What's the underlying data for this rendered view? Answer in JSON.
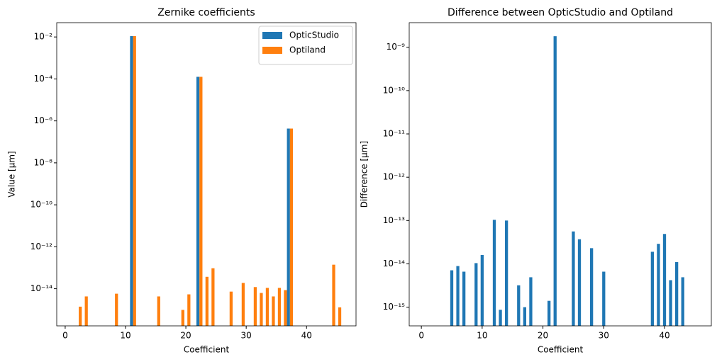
{
  "chart_data": [
    {
      "type": "bar",
      "title": "Zernike coefficients",
      "x_label": "Coefficient",
      "y_label": "Value [µm]",
      "yscale": "log",
      "legend": "upper right",
      "xlim": [
        -1.4,
        48.2
      ],
      "xticks": [
        0,
        10,
        20,
        30,
        40
      ],
      "ylim": [
        1.7e-16,
        0.048
      ],
      "yticks": [
        {
          "value": 0.01,
          "label": "10⁻²"
        },
        {
          "value": 0.0001,
          "label": "10⁻⁴"
        },
        {
          "value": 1e-06,
          "label": "10⁻⁶"
        },
        {
          "value": 1e-08,
          "label": "10⁻⁸"
        },
        {
          "value": 1e-10,
          "label": "10⁻¹⁰"
        },
        {
          "value": 1e-12,
          "label": "10⁻¹²"
        },
        {
          "value": 1e-14,
          "label": "10⁻¹⁴"
        }
      ],
      "x": [
        2,
        3,
        8,
        11,
        15,
        19,
        20,
        22,
        23,
        24,
        27,
        29,
        31,
        32,
        33,
        34,
        35,
        36,
        37,
        44,
        45
      ],
      "series": [
        {
          "name": "OpticStudio",
          "color": "#1f77b4",
          "values": [
            null,
            null,
            null,
            0.011,
            null,
            null,
            null,
            0.000126,
            null,
            null,
            null,
            null,
            null,
            null,
            null,
            null,
            null,
            null,
            4.3e-07,
            null,
            null
          ]
        },
        {
          "name": "Optiland",
          "color": "#ff7f0e",
          "values": [
            1.4e-15,
            4.3e-15,
            5.8e-15,
            0.011,
            4.3e-15,
            9.8e-16,
            5.4e-15,
            0.000126,
            3.7e-14,
            9.5e-14,
            7.3e-15,
            1.9e-14,
            1.2e-14,
            6.3e-15,
            1.1e-14,
            4.3e-15,
            1.1e-14,
            8.6e-15,
            4.3e-07,
            1.4e-13,
            1.3e-15
          ]
        }
      ]
    },
    {
      "type": "bar",
      "title": "Difference between OpticStudio and Optiland",
      "x_label": "Coefficient",
      "y_label": "Difference [µm]",
      "yscale": "log",
      "xlim": [
        -2.0,
        47.7
      ],
      "xticks": [
        0,
        10,
        20,
        30,
        40
      ],
      "ylim": [
        3.7e-16,
        3.7e-09
      ],
      "yticks": [
        {
          "value": 1e-09,
          "label": "10⁻⁹"
        },
        {
          "value": 1e-10,
          "label": "10⁻¹⁰"
        },
        {
          "value": 1e-11,
          "label": "10⁻¹¹"
        },
        {
          "value": 1e-12,
          "label": "10⁻¹²"
        },
        {
          "value": 1e-13,
          "label": "10⁻¹³"
        },
        {
          "value": 1e-14,
          "label": "10⁻¹⁴"
        },
        {
          "value": 1e-15,
          "label": "10⁻¹⁵"
        }
      ],
      "x": [
        5,
        6,
        7,
        9,
        10,
        12,
        13,
        14,
        16,
        17,
        18,
        21,
        22,
        25,
        26,
        28,
        30,
        38,
        39,
        40,
        41,
        42,
        43
      ],
      "color": "#1f77b4",
      "values": [
        7.1e-15,
        8.9e-15,
        6.6e-15,
        1.04e-14,
        1.6e-14,
        1.04e-13,
        8.7e-16,
        1e-13,
        3.2e-15,
        1e-15,
        4.9e-15,
        1.4e-15,
        1.8e-09,
        5.6e-14,
        3.7e-14,
        2.3e-14,
        6.6e-15,
        1.9e-14,
        2.9e-14,
        4.9e-14,
        4.2e-15,
        1.1e-14,
        4.9e-15
      ]
    }
  ]
}
